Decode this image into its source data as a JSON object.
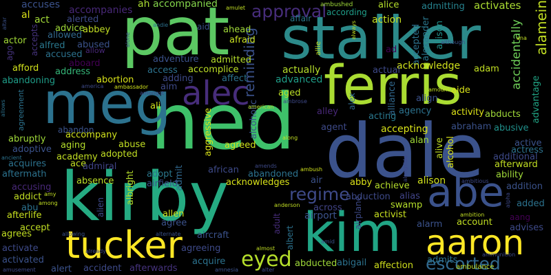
{
  "palette": {
    "background": "#000000",
    "colors": [
      "#440154",
      "#472d7b",
      "#3b528b",
      "#2c728e",
      "#21908d",
      "#27ad81",
      "#5cc863",
      "#aadc32",
      "#fde725"
    ]
  },
  "words": [
    {
      "text": "ned",
      "color": "#3ec16a"
    },
    {
      "text": "dale",
      "color": "#3b528b"
    },
    {
      "text": "kirby",
      "color": "#25ab82"
    },
    {
      "text": "pat",
      "color": "#5cc863"
    },
    {
      "text": "stalker",
      "color": "#2c8a8a"
    },
    {
      "text": "meg",
      "color": "#2c728e"
    },
    {
      "text": "ferris",
      "color": "#aadc32"
    },
    {
      "text": "kim",
      "color": "#21a585"
    },
    {
      "text": "tucker",
      "color": "#fde725"
    },
    {
      "text": "aaron",
      "color": "#fde725"
    },
    {
      "text": "abe",
      "color": "#3b528b"
    },
    {
      "text": "alec",
      "color": "#472d7b"
    },
    {
      "text": "eyed",
      "color": "#b5de2b"
    },
    {
      "text": "escorted",
      "color": "#31688e"
    },
    {
      "text": "regime",
      "color": "#3e4a89"
    },
    {
      "text": "approval",
      "color": "#472d7b"
    },
    {
      "text": "reminding",
      "color": "#3b528b"
    },
    {
      "text": "alamein",
      "color": "#c2df23"
    },
    {
      "text": "accidentally",
      "color": "#6ece58"
    },
    {
      "text": "admitting",
      "color": "#26828e"
    },
    {
      "text": "activates",
      "color": "#aadc32"
    },
    {
      "text": "accuses",
      "color": "#3b528b"
    },
    {
      "text": "accompanies",
      "color": "#482878"
    },
    {
      "text": "ah",
      "color": "#aadc32"
    },
    {
      "text": "accompanied",
      "color": "#84d44b"
    },
    {
      "text": "ambushed",
      "color": "#a0da39"
    },
    {
      "text": "alice",
      "color": "#b5de2b"
    },
    {
      "text": "al",
      "color": "#dde318"
    },
    {
      "text": "act",
      "color": "#a2da37"
    },
    {
      "text": "alerted",
      "color": "#3e4a89"
    },
    {
      "text": "advice",
      "color": "#a0da39"
    },
    {
      "text": "abbey",
      "color": "#c2df23"
    },
    {
      "text": "allowed",
      "color": "#31688e"
    },
    {
      "text": "alfred",
      "color": "#2a788e"
    },
    {
      "text": "abused",
      "color": "#3b528b"
    },
    {
      "text": "allow",
      "color": "#482878"
    },
    {
      "text": "accused",
      "color": "#2c728e"
    },
    {
      "text": "aboard",
      "color": "#440154"
    },
    {
      "text": "afford",
      "color": "#d0e11c"
    },
    {
      "text": "address",
      "color": "#35b779"
    },
    {
      "text": "abandoning",
      "color": "#1f9e89"
    },
    {
      "text": "actor",
      "color": "#a2da37"
    },
    {
      "text": "accepts",
      "color": "#46337e"
    },
    {
      "text": "ago",
      "color": "#46337e"
    },
    {
      "text": "aid",
      "color": "#3b528b"
    },
    {
      "text": "ahead",
      "color": "#a0da39"
    },
    {
      "text": "afraid",
      "color": "#c8e020"
    },
    {
      "text": "affair",
      "color": "#2a788e"
    },
    {
      "text": "according",
      "color": "#1f9e89"
    },
    {
      "text": "action",
      "color": "#c8e020"
    },
    {
      "text": "accepted",
      "color": "#2c728e"
    },
    {
      "text": "alexander",
      "color": "#2a788e"
    },
    {
      "text": "allison",
      "color": "#21918c"
    },
    {
      "text": "acknowledge",
      "color": "#d0e11c"
    },
    {
      "text": "adam",
      "color": "#c2df23"
    },
    {
      "text": "actual",
      "color": "#3e4a89"
    },
    {
      "text": "actually",
      "color": "#b5de2b"
    },
    {
      "text": "advanced",
      "color": "#1f9e89"
    },
    {
      "text": "access",
      "color": "#2c728e"
    },
    {
      "text": "accomplice",
      "color": "#bddf26"
    },
    {
      "text": "admitted",
      "color": "#b5de2b"
    },
    {
      "text": "adventure",
      "color": "#3b528b"
    },
    {
      "text": "abortion",
      "color": "#d8e219"
    },
    {
      "text": "adding",
      "color": "#3e4a89"
    },
    {
      "text": "affect",
      "color": "#2c728e"
    },
    {
      "text": "aged",
      "color": "#bddf26"
    },
    {
      "text": "aide",
      "color": "#d8e219"
    },
    {
      "text": "advantage",
      "color": "#21a585"
    },
    {
      "text": "ali",
      "color": "#d0e11c"
    },
    {
      "text": "aim",
      "color": "#3e4a89"
    },
    {
      "text": "align",
      "color": "#3b528b"
    },
    {
      "text": "agency",
      "color": "#2c728e"
    },
    {
      "text": "activity",
      "color": "#dde318"
    },
    {
      "text": "abducts",
      "color": "#a0da39"
    },
    {
      "text": "alley",
      "color": "#482878"
    },
    {
      "text": "alex",
      "color": "#31688e"
    },
    {
      "text": "alliance",
      "color": "#31688e"
    },
    {
      "text": "acting",
      "color": "#2a788e"
    },
    {
      "text": "agent",
      "color": "#3e4a89"
    },
    {
      "text": "accepting",
      "color": "#d8e219"
    },
    {
      "text": "abraham",
      "color": "#3b528b"
    },
    {
      "text": "abusive",
      "color": "#21918c"
    },
    {
      "text": "abandon",
      "color": "#3b528b"
    },
    {
      "text": "abruptly",
      "color": "#a0da39"
    },
    {
      "text": "accompany",
      "color": "#d0e11c"
    },
    {
      "text": "aging",
      "color": "#b5de2b"
    },
    {
      "text": "abuse",
      "color": "#c2df23"
    },
    {
      "text": "adopted",
      "color": "#c2df23"
    },
    {
      "text": "adoptive",
      "color": "#3b528b"
    },
    {
      "text": "academy",
      "color": "#c2df23"
    },
    {
      "text": "acquires",
      "color": "#2c728e"
    },
    {
      "text": "ace",
      "color": "#c2df23"
    },
    {
      "text": "admiral",
      "color": "#414487"
    },
    {
      "text": "aftermath",
      "color": "#2c728e"
    },
    {
      "text": "absence",
      "color": "#bddf26"
    },
    {
      "text": "accusing",
      "color": "#482878"
    },
    {
      "text": "addict",
      "color": "#c2df23"
    },
    {
      "text": "abu",
      "color": "#2c728e"
    },
    {
      "text": "afterlife",
      "color": "#c8e020"
    },
    {
      "text": "accept",
      "color": "#c2df23"
    },
    {
      "text": "agrees",
      "color": "#c2df23"
    },
    {
      "text": "activate",
      "color": "#3e4a89"
    },
    {
      "text": "activated",
      "color": "#3b528b"
    },
    {
      "text": "alert",
      "color": "#3b528b"
    },
    {
      "text": "accident",
      "color": "#3e4a89"
    },
    {
      "text": "afterwards",
      "color": "#46337e"
    },
    {
      "text": "agreed",
      "color": "#d0e11c"
    },
    {
      "text": "african",
      "color": "#3e4a89"
    },
    {
      "text": "adopt",
      "color": "#2a788e"
    },
    {
      "text": "admit",
      "color": "#31688e"
    },
    {
      "text": "airfield",
      "color": "#3b528b"
    },
    {
      "text": "alien",
      "color": "#3e4a89"
    },
    {
      "text": "albright",
      "color": "#b5de2b"
    },
    {
      "text": "allen",
      "color": "#d0e11c"
    },
    {
      "text": "agree",
      "color": "#3b528b"
    },
    {
      "text": "acknowledges",
      "color": "#d8e219"
    },
    {
      "text": "abandoned",
      "color": "#2c728e"
    },
    {
      "text": "air",
      "color": "#3b528b"
    },
    {
      "text": "abby",
      "color": "#dde318"
    },
    {
      "text": "achieve",
      "color": "#b5de2b"
    },
    {
      "text": "alison",
      "color": "#d0e11c"
    },
    {
      "text": "abduction",
      "color": "#3e4a89"
    },
    {
      "text": "alias",
      "color": "#414487"
    },
    {
      "text": "swamp",
      "color": "#b5de2b"
    },
    {
      "text": "across",
      "color": "#414487"
    },
    {
      "text": "airport",
      "color": "#3b528b"
    },
    {
      "text": "activist",
      "color": "#c8e020"
    },
    {
      "text": "adult",
      "color": "#472d7b"
    },
    {
      "text": "albert",
      "color": "#2c728e"
    },
    {
      "text": "airplane",
      "color": "#3e4a89"
    },
    {
      "text": "aircraft",
      "color": "#3b528b"
    },
    {
      "text": "agreeing",
      "color": "#3e4a89"
    },
    {
      "text": "acquire",
      "color": "#2c728e"
    },
    {
      "text": "alarm",
      "color": "#3b528b"
    },
    {
      "text": "account",
      "color": "#c2df23"
    },
    {
      "text": "admits",
      "color": "#2c728e"
    },
    {
      "text": "advises",
      "color": "#3e4a89"
    },
    {
      "text": "affection",
      "color": "#d0e11c"
    },
    {
      "text": "abigail",
      "color": "#2c728e"
    },
    {
      "text": "abducted",
      "color": "#a0da39"
    },
    {
      "text": "actress",
      "color": "#2c728e"
    },
    {
      "text": "additional",
      "color": "#3e4a89"
    },
    {
      "text": "afterward",
      "color": "#c2df23"
    },
    {
      "text": "ability",
      "color": "#a0da39"
    },
    {
      "text": "addition",
      "color": "#3b528b"
    },
    {
      "text": "active",
      "color": "#3b528b"
    },
    {
      "text": "added",
      "color": "#2c728e"
    },
    {
      "text": "aang",
      "color": "#440154"
    },
    {
      "text": "alive",
      "color": "#c2df23"
    },
    {
      "text": "alcohol",
      "color": "#d8e219"
    },
    {
      "text": "alan",
      "color": "#a0da39"
    },
    {
      "text": "aggressive",
      "color": "#d8e219"
    },
    {
      "text": "alcoholic",
      "color": "#3b528b"
    },
    {
      "text": "ambassador",
      "color": "#d0e11c"
    },
    {
      "text": "amongst",
      "color": "#3e4a89"
    },
    {
      "text": "american",
      "color": "#b5de2b"
    },
    {
      "text": "ambrose",
      "color": "#3e4a89"
    },
    {
      "text": "amount",
      "color": "#c2df23"
    },
    {
      "text": "america",
      "color": "#3e4a89"
    },
    {
      "text": "agreement",
      "color": "#2c728e"
    },
    {
      "text": "allows",
      "color": "#2c728e"
    },
    {
      "text": "ancient",
      "color": "#2c728e"
    },
    {
      "text": "amulet",
      "color": "#c2df23"
    },
    {
      "text": "alone",
      "color": "#3b528b"
    },
    {
      "text": "andie",
      "color": "#2c728e"
    },
    {
      "text": "although",
      "color": "#3b528b"
    },
    {
      "text": "always",
      "color": "#c2df23"
    },
    {
      "text": "allie",
      "color": "#c2df23"
    },
    {
      "text": "altar",
      "color": "#3b528b"
    },
    {
      "text": "along",
      "color": "#c2df23"
    },
    {
      "text": "ambush",
      "color": "#d0e11c"
    },
    {
      "text": "amends",
      "color": "#3e4a89"
    },
    {
      "text": "alongside",
      "color": "#3e4a89"
    },
    {
      "text": "ambitious",
      "color": "#3e4a89"
    },
    {
      "text": "ambition",
      "color": "#c2df23"
    },
    {
      "text": "amy",
      "color": "#c2df23"
    },
    {
      "text": "among",
      "color": "#c2df23"
    },
    {
      "text": "alpha",
      "color": "#3e4a89"
    },
    {
      "text": "anderson",
      "color": "#c2df23"
    },
    {
      "text": "ambulance",
      "color": "#c2df23"
    },
    {
      "text": "ammunition",
      "color": "#3e4a89"
    },
    {
      "text": "amusement",
      "color": "#3e4a89"
    },
    {
      "text": "amnesia",
      "color": "#3b528b"
    },
    {
      "text": "already",
      "color": "#3e4a89"
    },
    {
      "text": "alternate",
      "color": "#3b528b"
    },
    {
      "text": "allowing",
      "color": "#3b528b"
    },
    {
      "text": "almost",
      "color": "#c2df23"
    },
    {
      "text": "alter",
      "color": "#3e4a89"
    },
    {
      "text": "amid",
      "color": "#3b528b"
    },
    {
      "text": "ana",
      "color": "#c2df23"
    },
    {
      "text": "ad",
      "color": "#440154"
    }
  ]
}
